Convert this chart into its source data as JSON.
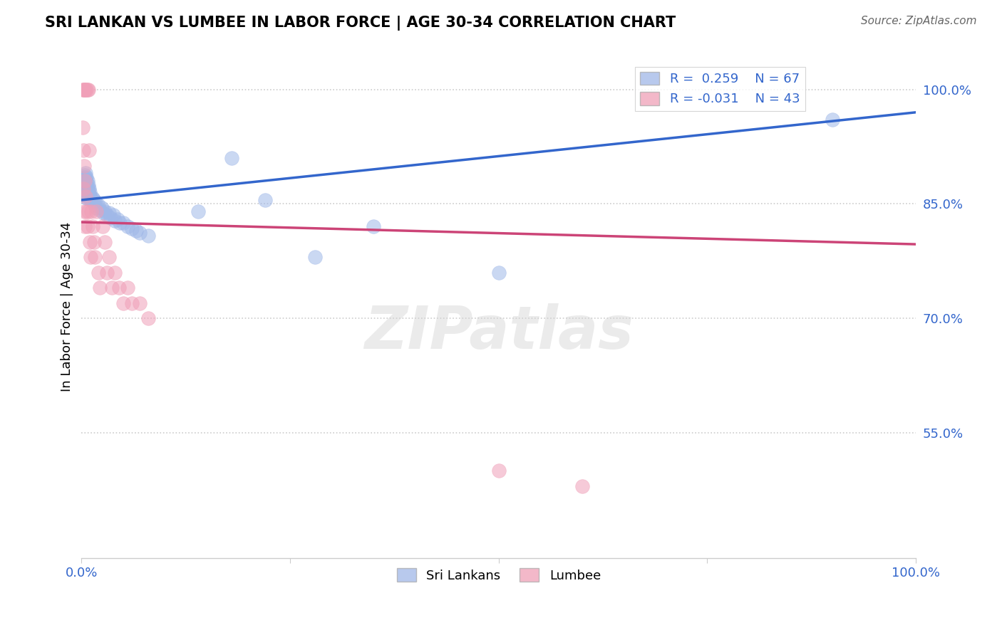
{
  "title": "SRI LANKAN VS LUMBEE IN LABOR FORCE | AGE 30-34 CORRELATION CHART",
  "source": "Source: ZipAtlas.com",
  "ylabel": "In Labor Force | Age 30-34",
  "xlim": [
    0.0,
    1.0
  ],
  "ylim": [
    0.385,
    1.045
  ],
  "yticks": [
    0.55,
    0.7,
    0.85,
    1.0
  ],
  "ytick_labels": [
    "55.0%",
    "70.0%",
    "85.0%",
    "100.0%"
  ],
  "blue_R": 0.259,
  "blue_N": 67,
  "pink_R": -0.031,
  "pink_N": 43,
  "blue_color": "#a0b8e8",
  "pink_color": "#f0a0b8",
  "blue_line_color": "#3366cc",
  "pink_line_color": "#cc4477",
  "legend_label_blue": "Sri Lankans",
  "legend_label_pink": "Lumbee",
  "watermark": "ZIPatlas",
  "blue_x": [
    0.001,
    0.001,
    0.002,
    0.002,
    0.002,
    0.002,
    0.003,
    0.003,
    0.003,
    0.004,
    0.004,
    0.004,
    0.004,
    0.005,
    0.005,
    0.005,
    0.005,
    0.005,
    0.006,
    0.006,
    0.006,
    0.006,
    0.006,
    0.007,
    0.007,
    0.007,
    0.007,
    0.008,
    0.008,
    0.008,
    0.009,
    0.009,
    0.01,
    0.01,
    0.011,
    0.012,
    0.013,
    0.014,
    0.015,
    0.016,
    0.017,
    0.018,
    0.02,
    0.022,
    0.024,
    0.026,
    0.028,
    0.03,
    0.033,
    0.035,
    0.038,
    0.04,
    0.043,
    0.046,
    0.05,
    0.055,
    0.06,
    0.065,
    0.07,
    0.08,
    0.14,
    0.18,
    0.22,
    0.28,
    0.35,
    0.5,
    0.9
  ],
  "blue_y": [
    0.87,
    0.875,
    0.88,
    0.875,
    0.868,
    0.862,
    0.885,
    0.878,
    0.872,
    0.888,
    0.882,
    0.875,
    0.865,
    0.89,
    0.883,
    0.876,
    0.87,
    0.862,
    0.885,
    0.88,
    0.873,
    0.865,
    0.858,
    0.88,
    0.873,
    0.865,
    0.857,
    0.875,
    0.868,
    0.86,
    0.87,
    0.862,
    0.865,
    0.857,
    0.86,
    0.855,
    0.858,
    0.852,
    0.855,
    0.848,
    0.852,
    0.845,
    0.848,
    0.842,
    0.845,
    0.838,
    0.84,
    0.835,
    0.838,
    0.832,
    0.835,
    0.828,
    0.83,
    0.825,
    0.825,
    0.82,
    0.818,
    0.815,
    0.812,
    0.808,
    0.84,
    0.91,
    0.855,
    0.78,
    0.82,
    0.76,
    0.96
  ],
  "pink_x": [
    0.001,
    0.001,
    0.002,
    0.002,
    0.002,
    0.003,
    0.003,
    0.003,
    0.004,
    0.004,
    0.004,
    0.005,
    0.005,
    0.006,
    0.006,
    0.007,
    0.007,
    0.008,
    0.008,
    0.009,
    0.01,
    0.011,
    0.012,
    0.013,
    0.015,
    0.016,
    0.018,
    0.02,
    0.022,
    0.025,
    0.028,
    0.03,
    0.033,
    0.036,
    0.04,
    0.045,
    0.05,
    0.055,
    0.06,
    0.07,
    0.08,
    0.5,
    0.6
  ],
  "pink_y": [
    1.0,
    0.95,
    1.0,
    0.92,
    0.87,
    1.0,
    0.9,
    0.84,
    1.0,
    0.88,
    0.82,
    1.0,
    0.86,
    1.0,
    0.84,
    1.0,
    0.82,
    1.0,
    0.84,
    0.92,
    0.8,
    0.78,
    0.84,
    0.82,
    0.8,
    0.78,
    0.84,
    0.76,
    0.74,
    0.82,
    0.8,
    0.76,
    0.78,
    0.74,
    0.76,
    0.74,
    0.72,
    0.74,
    0.72,
    0.72,
    0.7,
    0.5,
    0.48
  ],
  "blue_trend_x": [
    0.0,
    1.0
  ],
  "blue_trend_y_start": 0.855,
  "blue_trend_y_end": 0.97,
  "pink_trend_x": [
    0.0,
    1.0
  ],
  "pink_trend_y_start": 0.826,
  "pink_trend_y_end": 0.797,
  "grid_color": "#cccccc",
  "spine_color": "#cccccc",
  "tick_color": "#3366cc",
  "title_fontsize": 15,
  "axis_fontsize": 13,
  "source_fontsize": 11
}
